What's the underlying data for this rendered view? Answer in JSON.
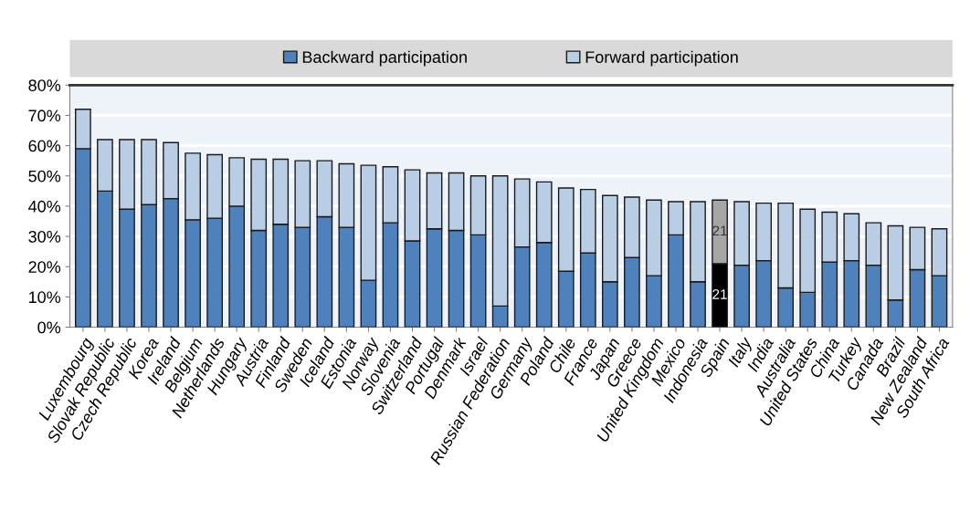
{
  "chart_data": {
    "type": "bar",
    "stacked": true,
    "legend": "top",
    "grid": "y",
    "categories": [
      "Luxembourg",
      "Slovak Republic",
      "Czech Republic",
      "Korea",
      "Ireland",
      "Belgium",
      "Netherlands",
      "Hungary",
      "Austria",
      "Finland",
      "Sweden",
      "Iceland",
      "Estonia",
      "Norway",
      "Slovenia",
      "Switzerland",
      "Portugal",
      "Denmark",
      "Israel",
      "Russian Federation",
      "Germany",
      "Poland",
      "Chile",
      "France",
      "Japan",
      "Greece",
      "United Kingdom",
      "Mexico",
      "Indonesia",
      "Spain",
      "Italy",
      "India",
      "Australia",
      "United States",
      "China",
      "Turkey",
      "Canada",
      "Brazil",
      "New Zealand",
      "South Africa"
    ],
    "ylim": [
      0,
      80
    ],
    "yticks": [
      {
        "value": 0,
        "label": "0%"
      },
      {
        "value": 10,
        "label": "10%"
      },
      {
        "value": 20,
        "label": "20%"
      },
      {
        "value": 30,
        "label": "30%"
      },
      {
        "value": 40,
        "label": "40%"
      },
      {
        "value": 50,
        "label": "50%"
      },
      {
        "value": 60,
        "label": "60%"
      },
      {
        "value": 70,
        "label": "70%"
      },
      {
        "value": 80,
        "label": "80%"
      }
    ],
    "series": [
      {
        "name": "Backward participation",
        "color": "#4f81bd",
        "colors": [
          "#4f81bd",
          "#4f81bd",
          "#4f81bd",
          "#4f81bd",
          "#4f81bd",
          "#4f81bd",
          "#4f81bd",
          "#4f81bd",
          "#4f81bd",
          "#4f81bd",
          "#4f81bd",
          "#4f81bd",
          "#4f81bd",
          "#4f81bd",
          "#4f81bd",
          "#4f81bd",
          "#4f81bd",
          "#4f81bd",
          "#4f81bd",
          "#4f81bd",
          "#4f81bd",
          "#4f81bd",
          "#4f81bd",
          "#4f81bd",
          "#4f81bd",
          "#4f81bd",
          "#4f81bd",
          "#4f81bd",
          "#4f81bd",
          "#000000",
          "#4f81bd",
          "#4f81bd",
          "#4f81bd",
          "#4f81bd",
          "#4f81bd",
          "#4f81bd",
          "#4f81bd",
          "#4f81bd",
          "#4f81bd",
          "#4f81bd"
        ],
        "values": [
          59,
          45,
          39,
          40.5,
          42.5,
          35.5,
          36,
          40,
          32,
          34,
          33,
          36.5,
          33,
          15.5,
          34.5,
          28.5,
          32.5,
          32,
          30.5,
          7,
          26.5,
          28,
          18.5,
          24.5,
          15,
          23,
          17,
          30.5,
          15,
          21,
          20.5,
          22,
          13,
          11.5,
          21.5,
          22,
          20.5,
          9,
          19,
          17
        ],
        "value_labels": [
          null,
          null,
          null,
          null,
          null,
          null,
          null,
          null,
          null,
          null,
          null,
          null,
          null,
          null,
          null,
          null,
          null,
          null,
          null,
          null,
          null,
          null,
          null,
          null,
          null,
          null,
          null,
          null,
          null,
          "21",
          null,
          null,
          null,
          null,
          null,
          null,
          null,
          null,
          null,
          null
        ]
      },
      {
        "name": "Forward participation",
        "color": "#b9cde5",
        "colors": [
          "#b9cde5",
          "#b9cde5",
          "#b9cde5",
          "#b9cde5",
          "#b9cde5",
          "#b9cde5",
          "#b9cde5",
          "#b9cde5",
          "#b9cde5",
          "#b9cde5",
          "#b9cde5",
          "#b9cde5",
          "#b9cde5",
          "#b9cde5",
          "#b9cde5",
          "#b9cde5",
          "#b9cde5",
          "#b9cde5",
          "#b9cde5",
          "#b9cde5",
          "#b9cde5",
          "#b9cde5",
          "#b9cde5",
          "#b9cde5",
          "#b9cde5",
          "#b9cde5",
          "#b9cde5",
          "#b9cde5",
          "#b9cde5",
          "#a6a6a6",
          "#b9cde5",
          "#b9cde5",
          "#b9cde5",
          "#b9cde5",
          "#b9cde5",
          "#b9cde5",
          "#b9cde5",
          "#b9cde5",
          "#b9cde5",
          "#b9cde5"
        ],
        "values": [
          13,
          17,
          23,
          21.5,
          18.5,
          22,
          21,
          16,
          23.5,
          21.5,
          22,
          18.5,
          21,
          38,
          18.5,
          23.5,
          18.5,
          19,
          19.5,
          43,
          22.5,
          20,
          27.5,
          21,
          28.5,
          20,
          25,
          11,
          26.5,
          21,
          21,
          19,
          28,
          27.5,
          16.5,
          15.5,
          14,
          24.5,
          14,
          15.5
        ],
        "value_labels": [
          null,
          null,
          null,
          null,
          null,
          null,
          null,
          null,
          null,
          null,
          null,
          null,
          null,
          null,
          null,
          null,
          null,
          null,
          null,
          null,
          null,
          null,
          null,
          null,
          null,
          null,
          null,
          null,
          null,
          "21",
          null,
          null,
          null,
          null,
          null,
          null,
          null,
          null,
          null,
          null
        ]
      }
    ]
  }
}
